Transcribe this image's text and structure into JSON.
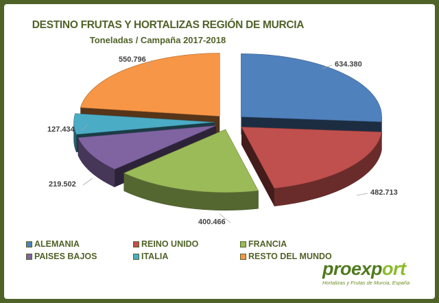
{
  "header": {
    "title": "DESTINO FRUTAS Y HORTALIZAS  REGIÓN DE MURCIA",
    "subtitle": "Toneladas / Campaña 2017-2018"
  },
  "chart_data": {
    "type": "pie",
    "style": "3d-exploded",
    "title": "DESTINO FRUTAS Y HORTALIZAS  REGIÓN DE MURCIA",
    "subtitle": "Toneladas / Campaña 2017-2018",
    "unit": "Toneladas",
    "categories": [
      "ALEMANIA",
      "REINO UNIDO",
      "FRANCIA",
      "PAISES BAJOS",
      "ITALIA",
      "RESTO DEL MUNDO"
    ],
    "values": [
      634380,
      482713,
      400466,
      219502,
      127434,
      550796
    ],
    "labels": [
      "634.380",
      "482.713",
      "400.466",
      "219.502",
      "127.434",
      "550.796"
    ],
    "colors": [
      "#4f81bd",
      "#c0504d",
      "#9bbb59",
      "#8064a2",
      "#4bacc6",
      "#f79646"
    ],
    "legend_position": "bottom"
  },
  "legend": {
    "items": [
      {
        "label": "ALEMANIA",
        "color": "#4f81bd"
      },
      {
        "label": "REINO UNIDO",
        "color": "#c0504d"
      },
      {
        "label": "FRANCIA",
        "color": "#9bbb59"
      },
      {
        "label": "PAISES BAJOS",
        "color": "#8064a2"
      },
      {
        "label": "ITALIA",
        "color": "#4bacc6"
      },
      {
        "label": "RESTO DEL MUNDO",
        "color": "#f79646"
      }
    ]
  },
  "logo": {
    "word_a": "proexp",
    "word_b": "o",
    "word_c": "rt",
    "tagline": "Hortalizas y Frutas de Murcia, España"
  },
  "colors": {
    "frame": "#4f6228",
    "title": "#4f6228"
  }
}
